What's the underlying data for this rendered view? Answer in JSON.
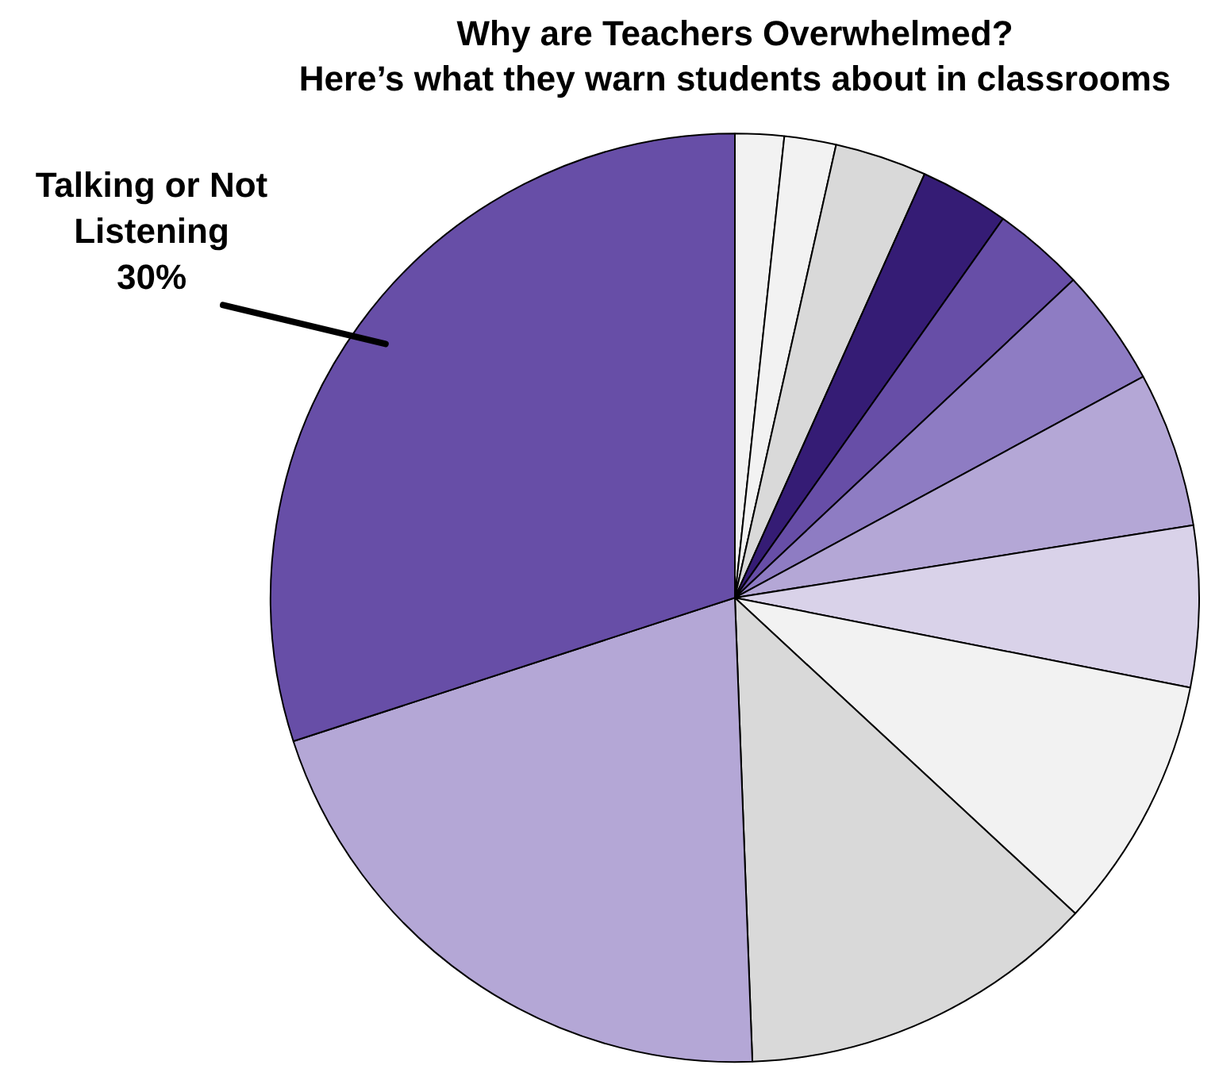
{
  "chart_data": {
    "type": "pie",
    "title": "Why are Teachers Overwhelmed?\nHere’s what they warn students about in classrooms",
    "categories": [
      null,
      null,
      null,
      null,
      null,
      null,
      null,
      null,
      null,
      null,
      null,
      "Talking or Not Listening"
    ],
    "values": [
      1.7,
      1.8,
      3.2,
      3.1,
      3.2,
      4.1,
      5.4,
      5.6,
      8.8,
      12.5,
      20.6,
      30
    ],
    "colors": [
      "#f2f2f2",
      "#f2f2f2",
      "#d9d9d9",
      "#351c75",
      "#674ea7",
      "#8e7cc3",
      "#b4a7d6",
      "#d9d2e9",
      "#f2f2f2",
      "#d9d9d9",
      "#b4a7d6",
      "#674ea7"
    ],
    "value_labels": [
      null,
      null,
      null,
      null,
      null,
      null,
      null,
      null,
      null,
      null,
      null,
      "30%"
    ],
    "legend": false
  }
}
